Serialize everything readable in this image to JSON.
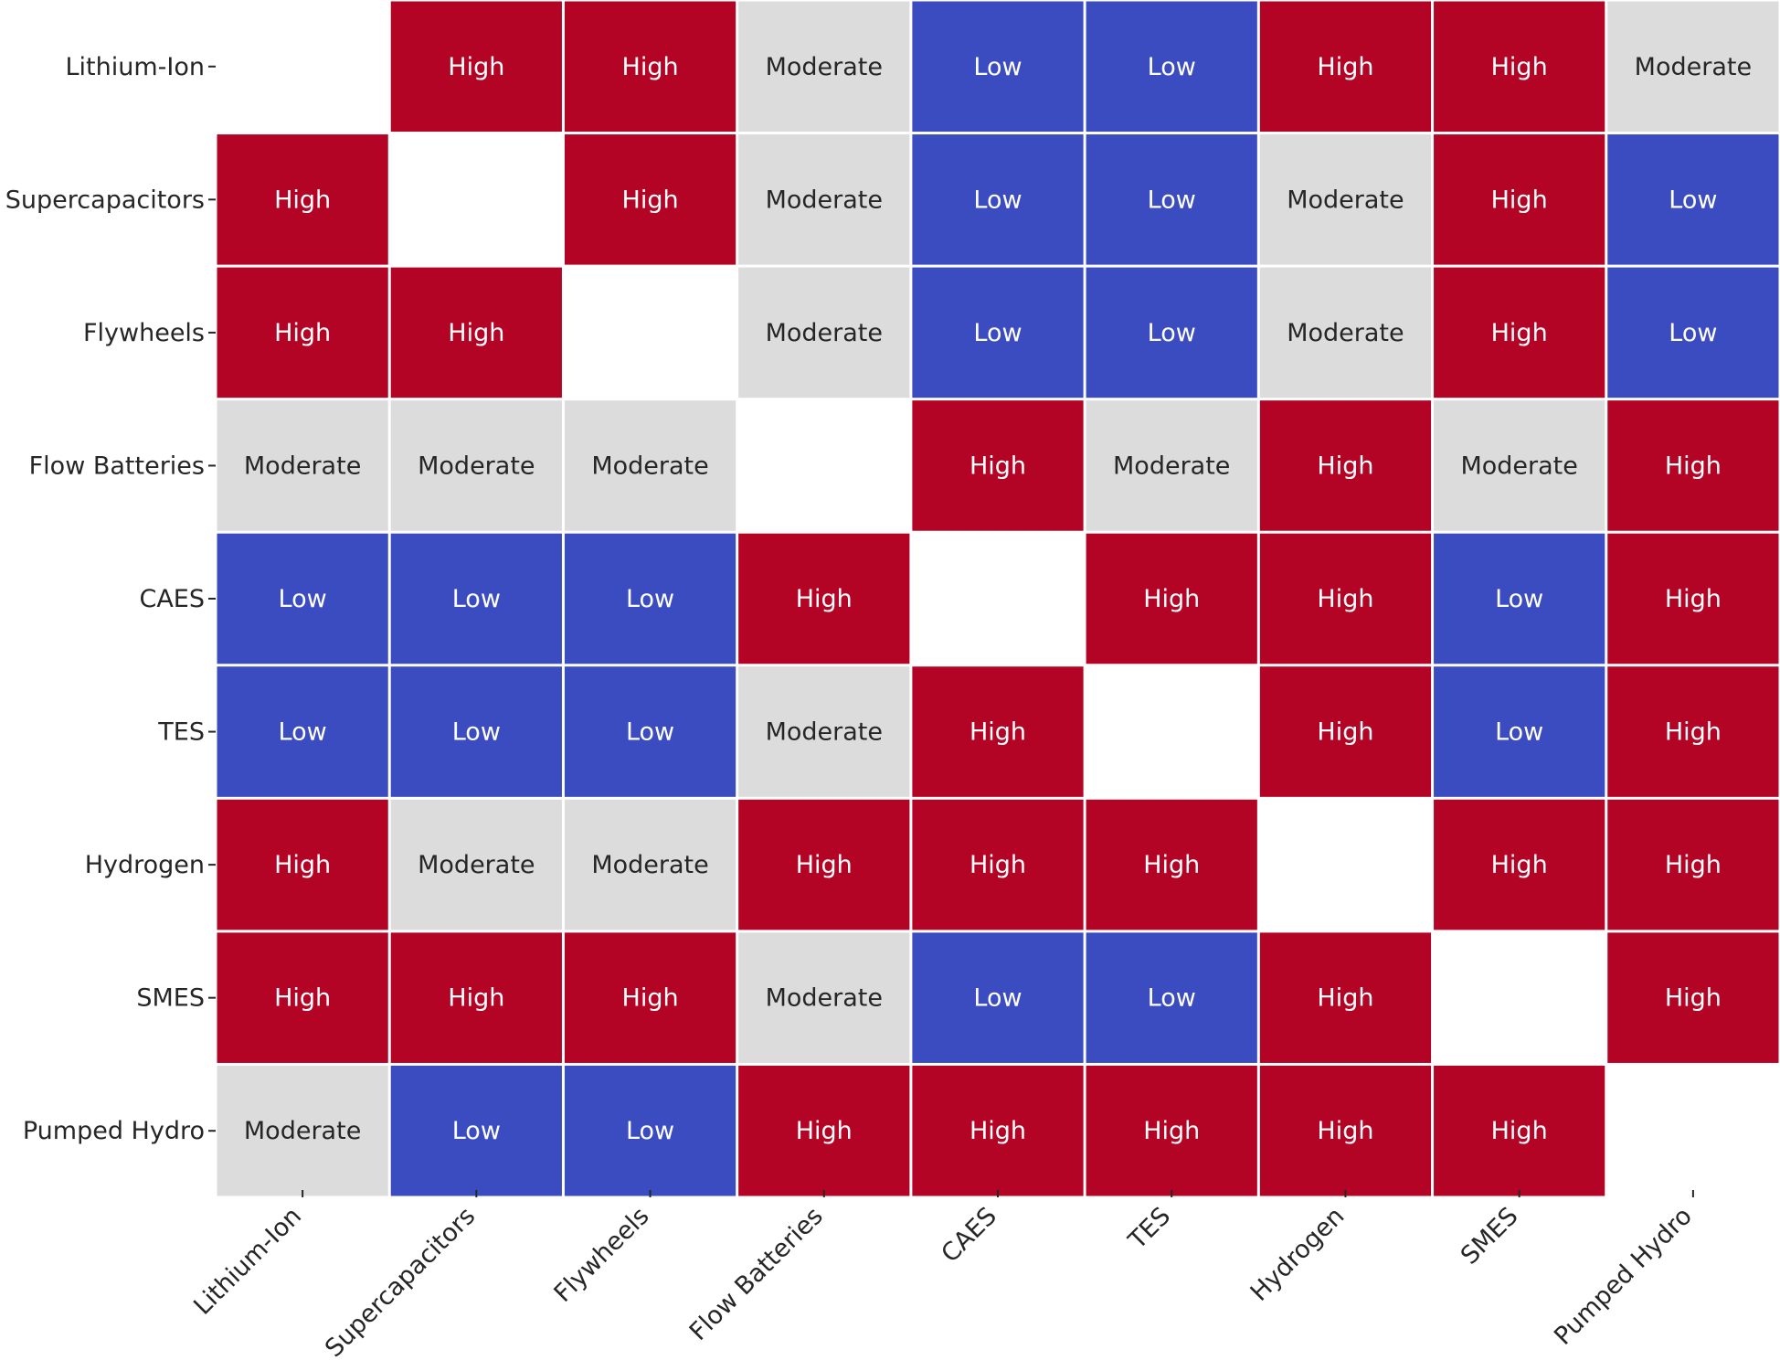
{
  "chart_data": {
    "type": "heatmap",
    "title": "",
    "xlabel": "",
    "ylabel": "",
    "x_categories": [
      "Lithium-Ion",
      "Supercapacitors",
      "Flywheels",
      "Flow Batteries",
      "CAES",
      "TES",
      "Hydrogen",
      "SMES",
      "Pumped Hydro"
    ],
    "y_categories": [
      "Lithium-Ion",
      "Supercapacitors",
      "Flywheels",
      "Flow Batteries",
      "CAES",
      "TES",
      "Hydrogen",
      "SMES",
      "Pumped Hydro"
    ],
    "values": [
      [
        "",
        "High",
        "High",
        "Moderate",
        "Low",
        "Low",
        "High",
        "High",
        "Moderate"
      ],
      [
        "High",
        "",
        "High",
        "Moderate",
        "Low",
        "Low",
        "Moderate",
        "High",
        "Low"
      ],
      [
        "High",
        "High",
        "",
        "Moderate",
        "Low",
        "Low",
        "Moderate",
        "High",
        "Low"
      ],
      [
        "Moderate",
        "Moderate",
        "Moderate",
        "",
        "High",
        "Moderate",
        "High",
        "Moderate",
        "High"
      ],
      [
        "Low",
        "Low",
        "Low",
        "High",
        "",
        "High",
        "High",
        "Low",
        "High"
      ],
      [
        "Low",
        "Low",
        "Low",
        "Moderate",
        "High",
        "",
        "High",
        "Low",
        "High"
      ],
      [
        "High",
        "Moderate",
        "Moderate",
        "High",
        "High",
        "High",
        "",
        "High",
        "High"
      ],
      [
        "High",
        "High",
        "High",
        "Moderate",
        "Low",
        "Low",
        "High",
        "",
        "High"
      ],
      [
        "Moderate",
        "Low",
        "Low",
        "High",
        "High",
        "High",
        "High",
        "High",
        ""
      ]
    ],
    "colors": {
      "High": "#b40426",
      "Moderate": "#dddcdc",
      "Low": "#3b4cc0"
    },
    "text_colors": {
      "High": "#ffffff",
      "Moderate": "#262626",
      "Low": "#ffffff"
    },
    "legend": "none",
    "grid": false
  }
}
